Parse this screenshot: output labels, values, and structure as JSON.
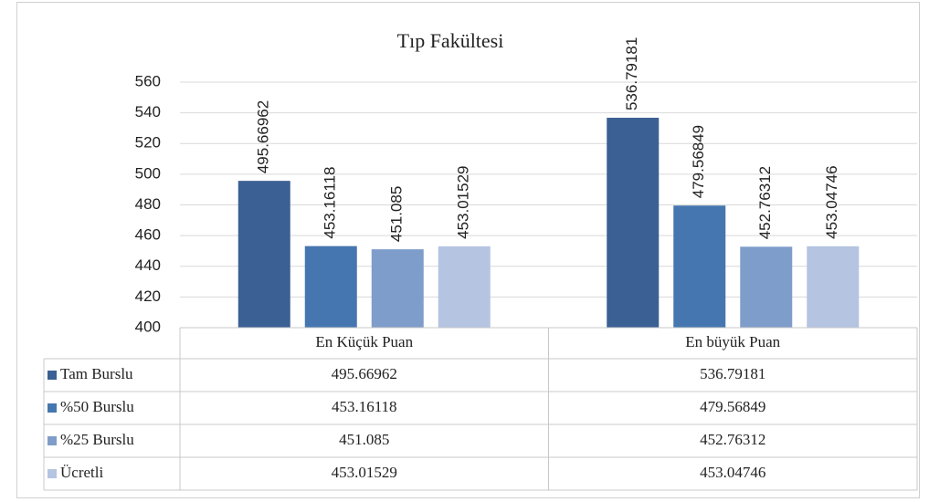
{
  "chart_data": {
    "type": "bar",
    "title": "Tıp Fakültesi",
    "categories": [
      "En Küçük Puan",
      "En büyük Puan"
    ],
    "series": [
      {
        "name": "Tam Burslu",
        "color": "#3b6093",
        "values": [
          495.66962,
          536.79181
        ]
      },
      {
        "name": "%50 Burslu",
        "color": "#4676af",
        "values": [
          453.16118,
          479.56849
        ]
      },
      {
        "name": "%25 Burslu",
        "color": "#7f9dca",
        "values": [
          451.085,
          452.76312
        ]
      },
      {
        "name": "Ücretli",
        "color": "#b4c4e1",
        "values": [
          453.01529,
          453.04746
        ]
      }
    ],
    "ylim": [
      400,
      560
    ],
    "yticks": [
      400,
      420,
      440,
      460,
      480,
      500,
      520,
      540,
      560
    ],
    "grid": true,
    "data_table": true
  }
}
